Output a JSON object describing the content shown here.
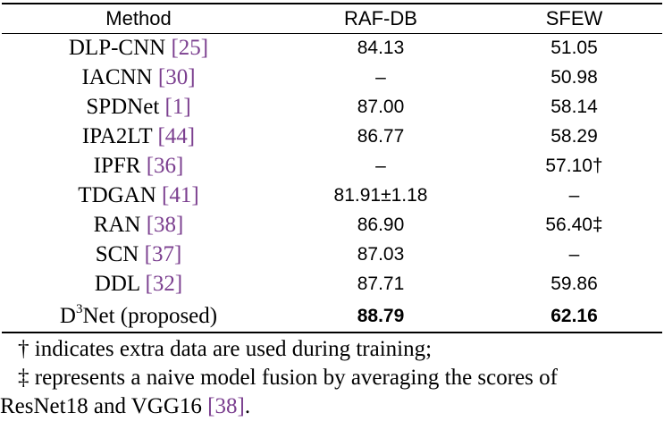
{
  "table": {
    "headers": [
      "Method",
      "RAF-DB",
      "SFEW"
    ],
    "rows": [
      {
        "method": "DLP-CNN",
        "cite": "25",
        "raf": "84.13",
        "sfew": "51.05"
      },
      {
        "method": "IACNN",
        "cite": "30",
        "raf": "–",
        "sfew": "50.98"
      },
      {
        "method": "SPDNet",
        "cite": "1",
        "raf": "87.00",
        "sfew": "58.14"
      },
      {
        "method": "IPA2LT",
        "cite": "44",
        "raf": "86.77",
        "sfew": "58.29"
      },
      {
        "method": "IPFR",
        "cite": "36",
        "raf": "–",
        "sfew": "57.10†"
      },
      {
        "method": "TDGAN",
        "cite": "41",
        "raf": "81.91±1.18",
        "sfew": "–"
      },
      {
        "method": "RAN",
        "cite": "38",
        "raf": "86.90",
        "sfew": "56.40‡"
      },
      {
        "method": "SCN",
        "cite": "37",
        "raf": "87.03",
        "sfew": "–"
      },
      {
        "method": "DDL",
        "cite": "32",
        "raf": "87.71",
        "sfew": "59.86"
      }
    ],
    "proposed": {
      "method_prefix": "D",
      "method_sup": "3",
      "method_suffix": "Net (proposed)",
      "raf": "88.79",
      "sfew": "62.16"
    }
  },
  "notes": {
    "line1": "† indicates extra data are used during training;",
    "line2": "‡ represents a naive model fusion by averaging the scores of",
    "line3_prefix": "ResNet18 and VGG16 ",
    "line3_cite": "38",
    "line3_suffix": "."
  }
}
